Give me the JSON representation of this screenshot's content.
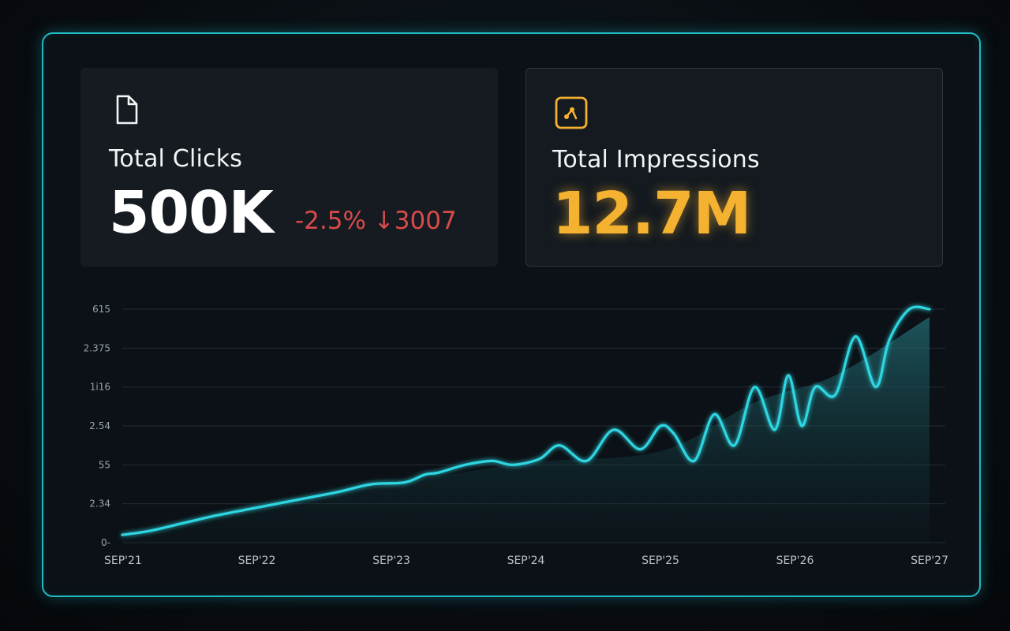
{
  "cards": {
    "clicks": {
      "icon": "document-icon",
      "title": "Total Clicks",
      "value": "500K",
      "delta": "-2.5% ↓3007",
      "delta_color": "#d94a4a"
    },
    "impressions": {
      "icon": "chart-app-icon",
      "title": "Total Impressions",
      "value": "12.7M",
      "accent_color": "#f5b230"
    }
  },
  "colors": {
    "frame_border": "#1fb9c4",
    "line": "#2fd6e2",
    "area": "#1b5a60"
  },
  "chart_data": {
    "type": "line",
    "title": "",
    "xlabel": "",
    "ylabel": "",
    "y_tick_labels": [
      "0-",
      "2.34",
      "55",
      "2.54",
      "1i16",
      "2.375",
      "615"
    ],
    "x_tick_labels": [
      "SEP'21",
      "SEP'22",
      "SEP'23",
      "SEP'24",
      "SEP'25",
      "SEP'26",
      "SEP'27"
    ],
    "ylim": [
      0,
      6
    ],
    "grid": true,
    "series": [
      {
        "style": "line",
        "x": [
          0,
          0.2,
          0.45,
          0.7,
          1.0,
          1.3,
          1.6,
          1.85,
          2.1,
          2.25,
          2.35,
          2.55,
          2.75,
          2.9,
          3.1,
          3.25,
          3.45,
          3.65,
          3.85,
          4.0,
          4.1,
          4.25,
          4.4,
          4.55,
          4.7,
          4.85,
          4.95,
          5.05,
          5.15,
          5.3,
          5.45,
          5.6,
          5.7,
          5.85,
          6.0
        ],
        "y": [
          0.2,
          0.3,
          0.5,
          0.7,
          0.9,
          1.1,
          1.3,
          1.5,
          1.55,
          1.75,
          1.8,
          2.0,
          2.1,
          2.0,
          2.15,
          2.5,
          2.1,
          2.9,
          2.4,
          3.0,
          2.8,
          2.1,
          3.3,
          2.5,
          4.0,
          2.9,
          4.3,
          3.0,
          4.0,
          3.8,
          5.3,
          4.0,
          5.2,
          6.0,
          6.0
        ]
      },
      {
        "style": "area",
        "x": [
          0,
          1,
          2,
          3,
          4,
          4.7,
          5.3,
          6.0
        ],
        "y": [
          0.1,
          1.0,
          1.5,
          2.05,
          2.35,
          3.6,
          4.3,
          5.8
        ]
      }
    ]
  }
}
